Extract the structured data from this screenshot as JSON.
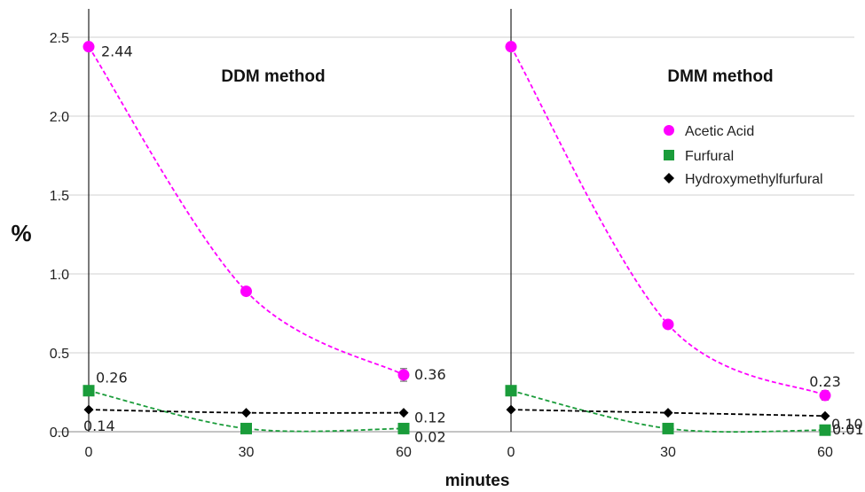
{
  "chart_data": [
    {
      "type": "line",
      "title": "DDM method",
      "xlabel": "minutes",
      "ylabel": "%",
      "x": [
        0,
        30,
        60
      ],
      "xticks": [
        "0",
        "30",
        "60"
      ],
      "yticks": [
        "0.0",
        "0.5",
        "1.0",
        "1.5",
        "2.0",
        "2.5"
      ],
      "ylim": [
        0,
        2.5
      ],
      "grid": true,
      "series": [
        {
          "name": "Acetic Acid",
          "values": [
            2.44,
            0.89,
            0.36
          ],
          "labels": [
            "2.44",
            "",
            "0.36"
          ],
          "color": "#ff00ff",
          "marker": "circle",
          "errors": [
            0,
            0,
            0.04
          ]
        },
        {
          "name": "Furfural",
          "values": [
            0.26,
            0.02,
            0.02
          ],
          "labels": [
            "0.26",
            "",
            "0.02"
          ],
          "color": "#1a9c3a",
          "marker": "square",
          "errors": [
            0,
            0,
            0
          ]
        },
        {
          "name": "Hydroxymethylfurfural",
          "values": [
            0.14,
            0.12,
            0.12
          ],
          "labels": [
            "0.14",
            "",
            "0.12"
          ],
          "color": "#000000",
          "marker": "diamond",
          "errors": [
            0,
            0,
            0
          ]
        }
      ]
    },
    {
      "type": "line",
      "title": "DMM method",
      "xlabel": "minutes",
      "ylabel": "%",
      "x": [
        0,
        30,
        60
      ],
      "xticks": [
        "0",
        "30",
        "60"
      ],
      "yticks": [
        "0.0",
        "0.5",
        "1.0",
        "1.5",
        "2.0",
        "2.5"
      ],
      "ylim": [
        0,
        2.5
      ],
      "grid": true,
      "legend": "right",
      "series": [
        {
          "name": "Acetic Acid",
          "values": [
            2.44,
            0.68,
            0.23
          ],
          "labels": [
            "",
            "",
            "0.23"
          ],
          "color": "#ff00ff",
          "marker": "circle",
          "errors": [
            0,
            0,
            0.03
          ]
        },
        {
          "name": "Furfural",
          "values": [
            0.26,
            0.02,
            0.01
          ],
          "labels": [
            "",
            "",
            "0.01"
          ],
          "color": "#1a9c3a",
          "marker": "square",
          "errors": [
            0,
            0,
            0
          ]
        },
        {
          "name": "Hydroxymethylfurfural",
          "values": [
            0.14,
            0.12,
            0.1
          ],
          "labels": [
            "",
            "",
            "0.10"
          ],
          "color": "#000000",
          "marker": "diamond",
          "errors": [
            0,
            0,
            0
          ]
        }
      ]
    }
  ],
  "legend": {
    "items": [
      {
        "name": "Acetic Acid",
        "color": "#ff00ff",
        "marker": "circle"
      },
      {
        "name": "Furfural",
        "color": "#1a9c3a",
        "marker": "square"
      },
      {
        "name": "Hydroxymethylfurfural",
        "color": "#000000",
        "marker": "diamond"
      }
    ]
  }
}
